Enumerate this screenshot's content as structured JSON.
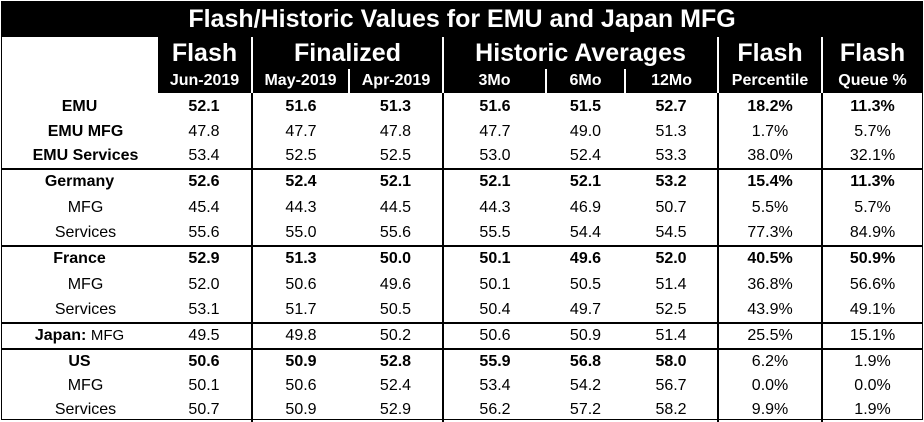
{
  "title": "Flash/Historic Values for EMU and Japan MFG",
  "groups": {
    "flash": "Flash",
    "finalized": "Finalized",
    "historic": "Historic Averages",
    "flash2": "Flash",
    "flash3": "Flash"
  },
  "columns": [
    "Jun-2019",
    "May-2019",
    "Apr-2019",
    "3Mo",
    "6Mo",
    "12Mo",
    "Percentile",
    "Queue %"
  ],
  "rows": [
    {
      "label": "EMU",
      "values": [
        "52.1",
        "51.6",
        "51.3",
        "51.6",
        "51.5",
        "52.7",
        "18.2%",
        "11.3%"
      ]
    },
    {
      "label": "EMU MFG",
      "values": [
        "47.8",
        "47.7",
        "47.8",
        "47.7",
        "49.0",
        "51.3",
        "1.7%",
        "5.7%"
      ]
    },
    {
      "label": "EMU Services",
      "values": [
        "53.4",
        "52.5",
        "52.5",
        "53.0",
        "52.4",
        "53.3",
        "38.0%",
        "32.1%"
      ]
    },
    {
      "label": "Germany",
      "values": [
        "52.6",
        "52.4",
        "52.1",
        "52.1",
        "52.1",
        "53.2",
        "15.4%",
        "11.3%"
      ]
    },
    {
      "label": "MFG",
      "values": [
        "45.4",
        "44.3",
        "44.5",
        "44.3",
        "46.9",
        "50.7",
        "5.5%",
        "5.7%"
      ]
    },
    {
      "label": "Services",
      "values": [
        "55.6",
        "55.0",
        "55.6",
        "55.5",
        "54.4",
        "54.5",
        "77.3%",
        "84.9%"
      ]
    },
    {
      "label": "France",
      "values": [
        "52.9",
        "51.3",
        "50.0",
        "50.1",
        "49.6",
        "52.0",
        "40.5%",
        "50.9%"
      ]
    },
    {
      "label": "MFG",
      "values": [
        "52.0",
        "50.6",
        "49.6",
        "50.1",
        "50.5",
        "51.4",
        "36.8%",
        "56.6%"
      ]
    },
    {
      "label": "Services",
      "values": [
        "53.1",
        "51.7",
        "50.5",
        "50.4",
        "49.7",
        "52.5",
        "43.9%",
        "49.1%"
      ]
    },
    {
      "label": "Japan:",
      "label2": "MFG",
      "values": [
        "49.5",
        "49.8",
        "50.2",
        "50.6",
        "50.9",
        "51.4",
        "25.5%",
        "15.1%"
      ]
    },
    {
      "label": "US",
      "values": [
        "50.6",
        "50.9",
        "52.8",
        "55.9",
        "56.8",
        "58.0",
        "6.2%",
        "1.9%"
      ]
    },
    {
      "label": "MFG",
      "values": [
        "50.1",
        "50.6",
        "52.4",
        "53.4",
        "54.2",
        "56.7",
        "0.0%",
        "0.0%"
      ]
    },
    {
      "label": "Services",
      "values": [
        "50.7",
        "50.9",
        "52.9",
        "56.2",
        "57.2",
        "58.2",
        "9.9%",
        "1.9%"
      ]
    }
  ]
}
